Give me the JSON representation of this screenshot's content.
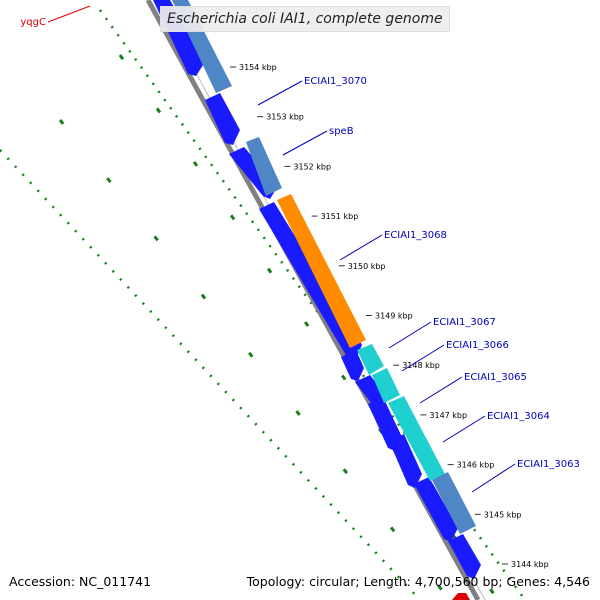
{
  "title": "Escherichia coli IAI1, complete genome",
  "footer": {
    "accession": "Accession: NC_011741",
    "summary": "Topology: circular; Length: 4,700,560 bp; Genes: 4,546"
  },
  "colors": {
    "forward_gene": "#1a1aff",
    "reverse_gene": "#4f86c6",
    "highlight_orange": "#ff8c00",
    "highlight_cyan": "#20cfcf",
    "backbone": "#808080",
    "gc_ticks": "#1a7f1a",
    "gene_label": "#0000bb",
    "gene_label_red": "#dd0000"
  },
  "kbp_ticks": [
    {
      "kbp": 3154,
      "label": "3154 kbp"
    },
    {
      "kbp": 3153,
      "label": "3153 kbp"
    },
    {
      "kbp": 3152,
      "label": "3152 kbp"
    },
    {
      "kbp": 3151,
      "label": "3151 kbp"
    },
    {
      "kbp": 3150,
      "label": "3150 kbp"
    },
    {
      "kbp": 3149,
      "label": "3149 kbp"
    },
    {
      "kbp": 3148,
      "label": "3148 kbp"
    },
    {
      "kbp": 3147,
      "label": "3147 kbp"
    },
    {
      "kbp": 3146,
      "label": "3146 kbp"
    },
    {
      "kbp": 3145,
      "label": "3145 kbp"
    },
    {
      "kbp": 3144,
      "label": "3144 kbp"
    }
  ],
  "gene_labels": [
    {
      "name": "yqgC",
      "color_key": "gene_label_red"
    },
    {
      "name": "ECIAI1_3070",
      "color_key": "gene_label"
    },
    {
      "name": "speB",
      "color_key": "gene_label"
    },
    {
      "name": "ECIAI1_3068",
      "color_key": "gene_label"
    },
    {
      "name": "ECIAI1_3067",
      "color_key": "gene_label"
    },
    {
      "name": "ECIAI1_3066",
      "color_key": "gene_label"
    },
    {
      "name": "ECIAI1_3065",
      "color_key": "gene_label"
    },
    {
      "name": "ECIAI1_3064",
      "color_key": "gene_label"
    },
    {
      "name": "ECIAI1_3063",
      "color_key": "gene_label"
    }
  ]
}
